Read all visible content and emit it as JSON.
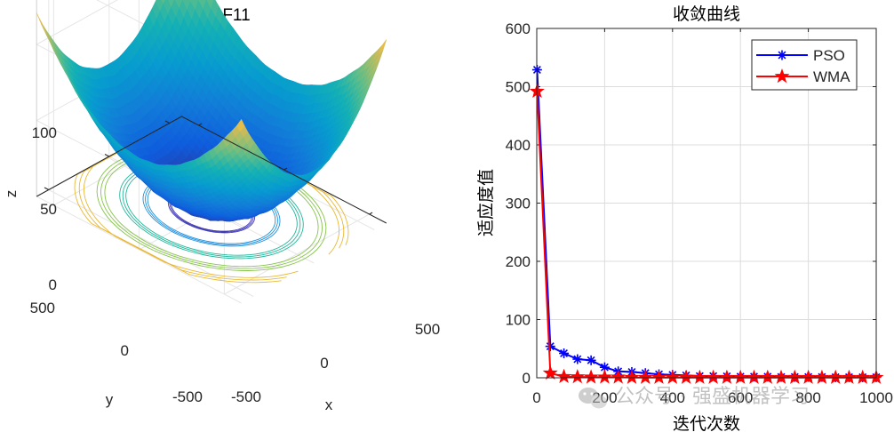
{
  "chart_data": [
    {
      "type": "surface3d",
      "title": "F11",
      "xlabel": "x",
      "ylabel": "y",
      "zlabel": "z",
      "x_ticks": [
        "-500",
        "0",
        "500"
      ],
      "y_ticks": [
        "-500",
        "0",
        "500"
      ],
      "z_ticks": [
        "0",
        "50",
        "100"
      ],
      "xlim": [
        -600,
        600
      ],
      "ylim": [
        -600,
        600
      ],
      "zlim": [
        0,
        180
      ],
      "function": "Griewank: 1 + (x^2 + y^2)/4000 - cos(x)*cos(y/sqrt(2))",
      "colormap": "parula",
      "contour_levels": [
        10,
        25,
        45,
        70,
        100
      ],
      "contour_colors": [
        "#3e38b4",
        "#1e8fdc",
        "#1fb79a",
        "#86c34a",
        "#e9b833"
      ]
    },
    {
      "type": "line",
      "title": "收敛曲线",
      "xlabel": "迭代次数",
      "ylabel": "适应度值",
      "xlim": [
        0,
        1000
      ],
      "ylim": [
        0,
        600
      ],
      "x_ticks": [
        "0",
        "200",
        "400",
        "600",
        "800",
        "1000"
      ],
      "y_ticks": [
        "0",
        "100",
        "200",
        "300",
        "400",
        "500",
        "600"
      ],
      "grid": true,
      "legend": "top-right",
      "x": [
        1,
        40,
        80,
        120,
        160,
        200,
        240,
        280,
        320,
        360,
        400,
        440,
        480,
        520,
        560,
        600,
        640,
        680,
        720,
        760,
        800,
        840,
        880,
        920,
        960,
        1000
      ],
      "series": [
        {
          "name": "PSO",
          "color": "#0000ff",
          "marker": "asterisk",
          "values": [
            529,
            54,
            42,
            32,
            30,
            18,
            11,
            10,
            8,
            6,
            5,
            4,
            3,
            3,
            2.5,
            2,
            2,
            2,
            1.5,
            1.5,
            1.5,
            1.5,
            1,
            1,
            1,
            1
          ]
        },
        {
          "name": "WMA",
          "color": "#ff0000",
          "marker": "star",
          "values": [
            492,
            8,
            2,
            1.5,
            1,
            1,
            1,
            0.5,
            0.5,
            0.5,
            0.5,
            0.5,
            0.5,
            0.5,
            0.5,
            0.5,
            0.5,
            0.5,
            0.5,
            0.5,
            0.5,
            0.5,
            0.5,
            0.5,
            0.5,
            0.5
          ]
        }
      ]
    }
  ],
  "watermark": {
    "icon": "wechat-icon",
    "text": "公众号 · 强盛机器学习"
  }
}
